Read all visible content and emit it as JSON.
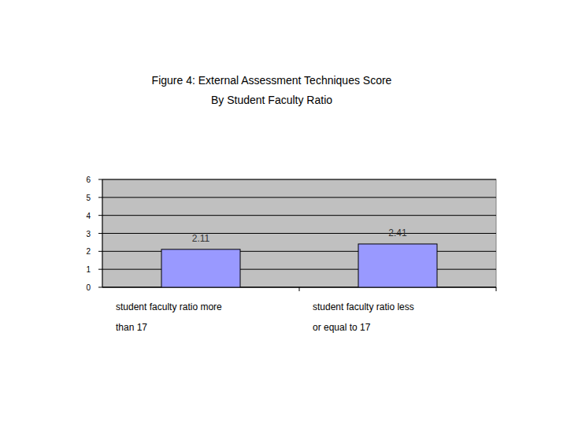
{
  "chart_data": {
    "type": "bar",
    "title": "Figure 4: External Assessment Techniques Score\nBy Student Faculty Ratio",
    "categories": [
      "student faculty ratio more\nthan 17",
      "student faculty ratio less\nor equal to 17"
    ],
    "values": [
      2.11,
      2.41
    ],
    "color": "#9999ff",
    "ylim": [
      0,
      6
    ],
    "yticks": [
      0,
      1,
      2,
      3,
      4,
      5,
      6
    ],
    "grid": true,
    "data_labels": true
  }
}
